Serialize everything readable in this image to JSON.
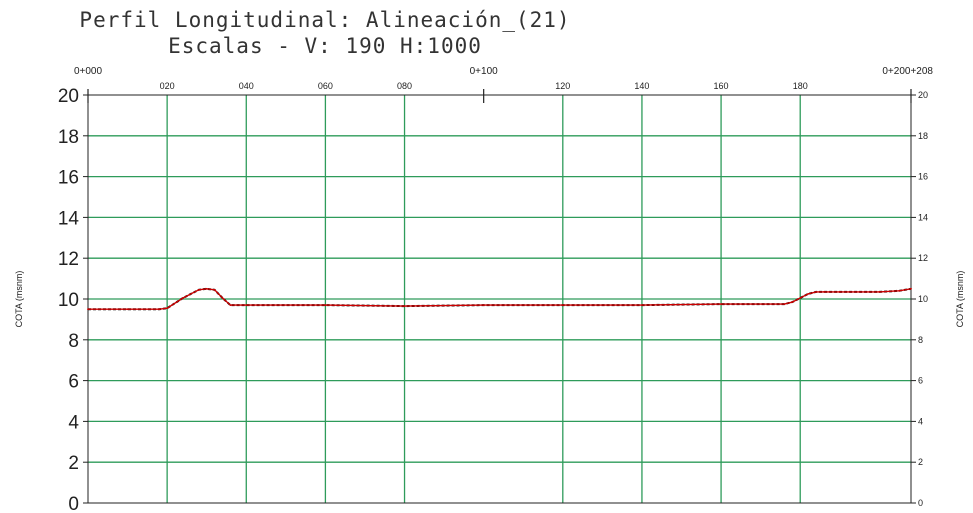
{
  "chart_data": {
    "type": "line",
    "title": "Perfil Longitudinal: Alineación_(21)",
    "subtitle": "Escalas - V: 190 H:1000",
    "ylabel_left": "COTA (msnm)",
    "ylabel_right": "COTA (msnm)",
    "xlim": [
      0,
      208
    ],
    "ylim": [
      0,
      20
    ],
    "grid": true,
    "y_ticks": [
      "0",
      "2",
      "4",
      "6",
      "8",
      "10",
      "12",
      "14",
      "16",
      "18",
      "20"
    ],
    "x_ticks": [
      {
        "value": 0,
        "label": "0+000",
        "major": true
      },
      {
        "value": 20,
        "label": "020",
        "major": false
      },
      {
        "value": 40,
        "label": "040",
        "major": false
      },
      {
        "value": 60,
        "label": "060",
        "major": false
      },
      {
        "value": 80,
        "label": "080",
        "major": false
      },
      {
        "value": 100,
        "label": "0+100",
        "major": true
      },
      {
        "value": 120,
        "label": "120",
        "major": false
      },
      {
        "value": 140,
        "label": "140",
        "major": false
      },
      {
        "value": 160,
        "label": "160",
        "major": false
      },
      {
        "value": 180,
        "label": "180",
        "major": false
      },
      {
        "value": 208,
        "label": "0+200+208",
        "major": true
      }
    ],
    "series": [
      {
        "color": "#cc0000",
        "x": [
          0,
          10,
          18,
          20,
          24,
          28,
          30,
          32,
          34,
          36,
          40,
          60,
          80,
          100,
          120,
          140,
          160,
          176,
          178,
          180,
          182,
          184,
          186,
          190,
          200,
          205,
          208
        ],
        "y": [
          9.5,
          9.5,
          9.5,
          9.55,
          10.05,
          10.45,
          10.5,
          10.45,
          10.05,
          9.7,
          9.7,
          9.7,
          9.65,
          9.7,
          9.7,
          9.7,
          9.75,
          9.75,
          9.85,
          10.05,
          10.25,
          10.35,
          10.35,
          10.35,
          10.35,
          10.4,
          10.5
        ]
      }
    ]
  }
}
